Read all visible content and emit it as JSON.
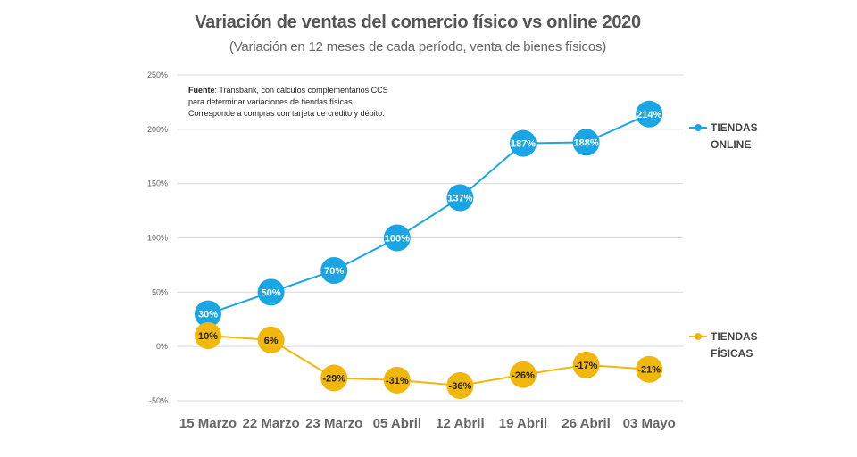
{
  "title": "Variación de ventas del comercio físico vs online 2020",
  "subtitle": "(Variación en 12 meses de cada período, venta de bienes físicos)",
  "note": {
    "label": "Fuente",
    "line1": ": Transbank, con cálculos complementarios CCS",
    "line2": "para determinar variaciones de tiendas físicas.",
    "line3": "Corresponde a compras con tarjeta de crédito y débito."
  },
  "colors": {
    "online": "#1aa6e4",
    "fisicas": "#f2b70c",
    "grid": "#d9d9d9",
    "axis_text": "#666666",
    "category_text": "#666666"
  },
  "chart_data": {
    "type": "line",
    "categories": [
      "15 Marzo",
      "22 Marzo",
      "23 Marzo",
      "05 Abril",
      "12 Abril",
      "19 Abril",
      "26 Abril",
      "03 Mayo"
    ],
    "yticks": [
      "250%",
      "200%",
      "150%",
      "100%",
      "50%",
      "0%",
      "-50%"
    ],
    "ytick_values": [
      250,
      200,
      150,
      100,
      50,
      0,
      -50
    ],
    "ylim": [
      -50,
      250
    ],
    "grid": true,
    "legend_position": "right",
    "series": [
      {
        "name": "TIENDAS ONLINE",
        "legend_line1": "TIENDAS",
        "legend_line2": "ONLINE",
        "values": [
          30,
          50,
          70,
          100,
          137,
          187,
          188,
          214
        ],
        "labels": [
          "30%",
          "50%",
          "70%",
          "100%",
          "137%",
          "187%",
          "188%",
          "214%"
        ]
      },
      {
        "name": "TIENDAS FÍSICAS",
        "legend_line1": "TIENDAS",
        "legend_line2": "FÍSICAS",
        "values": [
          10,
          6,
          -29,
          -31,
          -36,
          -26,
          -17,
          -21
        ],
        "labels": [
          "10%",
          "6%",
          "-29%",
          "-31%",
          "-36%",
          "-26%",
          "-17%",
          "-21%"
        ]
      }
    ]
  }
}
